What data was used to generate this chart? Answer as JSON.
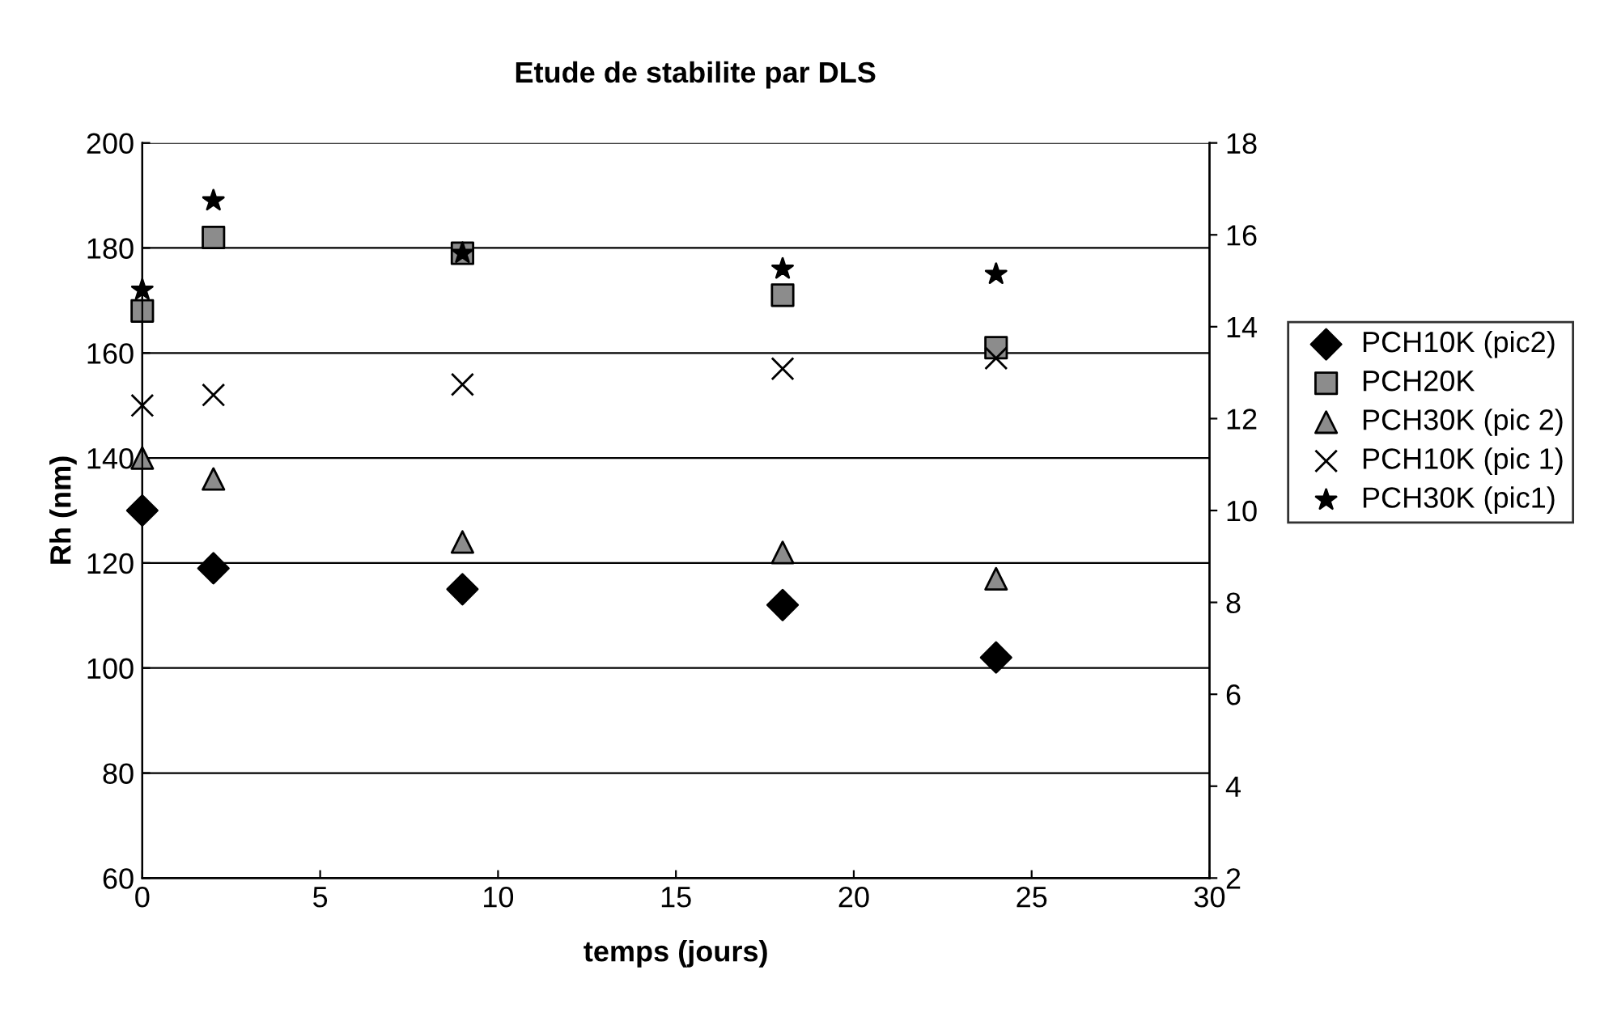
{
  "chart_data": {
    "type": "scatter",
    "title": "Etude de stabilite par DLS",
    "xlabel": "temps (jours)",
    "ylabel": "Rh (nm)",
    "x": [
      0,
      2,
      9,
      18,
      24
    ],
    "series": [
      {
        "name": "PCH10K (pic2)",
        "color": "#000000",
        "marker": "diamond",
        "values": [
          130,
          119,
          115,
          112,
          102
        ]
      },
      {
        "name": "PCH20K",
        "color": "#8c8c8c",
        "marker": "square",
        "values": [
          168,
          182,
          179,
          171,
          161
        ]
      },
      {
        "name": "PCH30K (pic 2)",
        "color": "#8c8c8c",
        "marker": "triangle",
        "values": [
          140,
          136,
          124,
          122,
          117
        ]
      },
      {
        "name": "PCH10K (pic 1)",
        "color": "#000000",
        "marker": "cross",
        "values": [
          150,
          152,
          154,
          157,
          159
        ]
      },
      {
        "name": "PCH30K (pic1)",
        "color": "#000000",
        "marker": "star",
        "values": [
          172,
          189,
          179,
          176,
          175
        ]
      }
    ],
    "xlim": [
      0,
      30
    ],
    "xticks": [
      0,
      5,
      10,
      15,
      20,
      25,
      30
    ],
    "ylim": [
      60,
      200
    ],
    "yticks": [
      60,
      80,
      100,
      120,
      140,
      160,
      180,
      200
    ],
    "y2lim": [
      2,
      18
    ],
    "y2ticks": [
      2,
      4,
      6,
      8,
      10,
      12,
      14,
      16,
      18
    ],
    "grid": "y",
    "legend": "right"
  }
}
